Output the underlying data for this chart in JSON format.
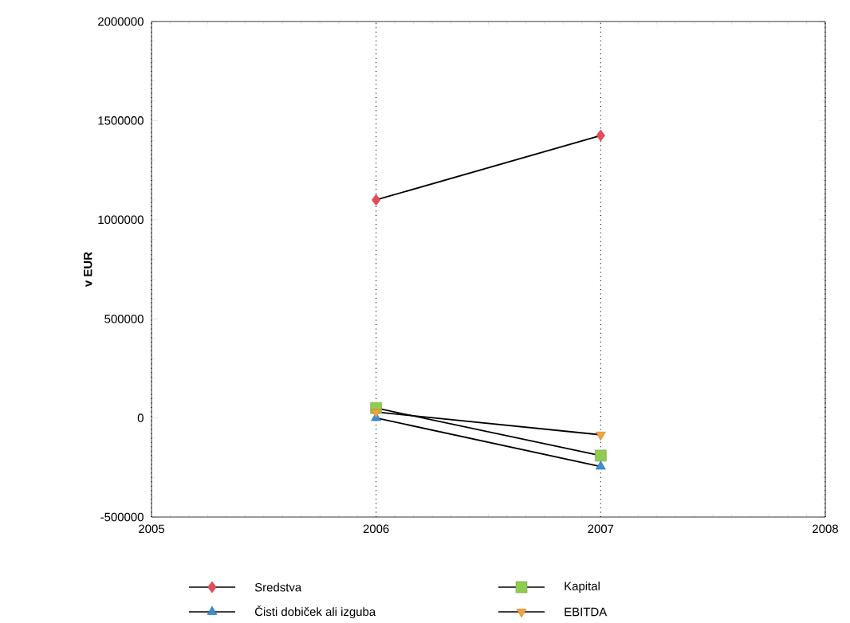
{
  "chart_data": {
    "type": "line",
    "ylabel": "v EUR",
    "x": [
      2006,
      2007
    ],
    "series": [
      {
        "name": "Sredstva",
        "color": "#e84a5a",
        "marker": "diamond",
        "values": [
          1100000,
          1425000
        ]
      },
      {
        "name": "Kapital",
        "color": "#90cc50",
        "marker": "square",
        "values": [
          50000,
          -190000
        ]
      },
      {
        "name": "Čisti dobiček ali izguba",
        "color": "#3a8fd0",
        "marker": "triangle",
        "values": [
          0,
          -245000
        ]
      },
      {
        "name": "EBITDA",
        "color": "#f5a040",
        "marker": "triangle down",
        "values": [
          30000,
          -85000
        ]
      }
    ],
    "xlim": [
      2005,
      2008
    ],
    "xticks": [
      2005,
      2006,
      2007,
      2008
    ],
    "ylim": [
      -500000,
      2000000
    ],
    "yticks": [
      -500000,
      0,
      500000,
      1000000,
      1500000,
      2000000
    ],
    "grid": "x",
    "legend": "bottom",
    "line_style": "solid"
  }
}
